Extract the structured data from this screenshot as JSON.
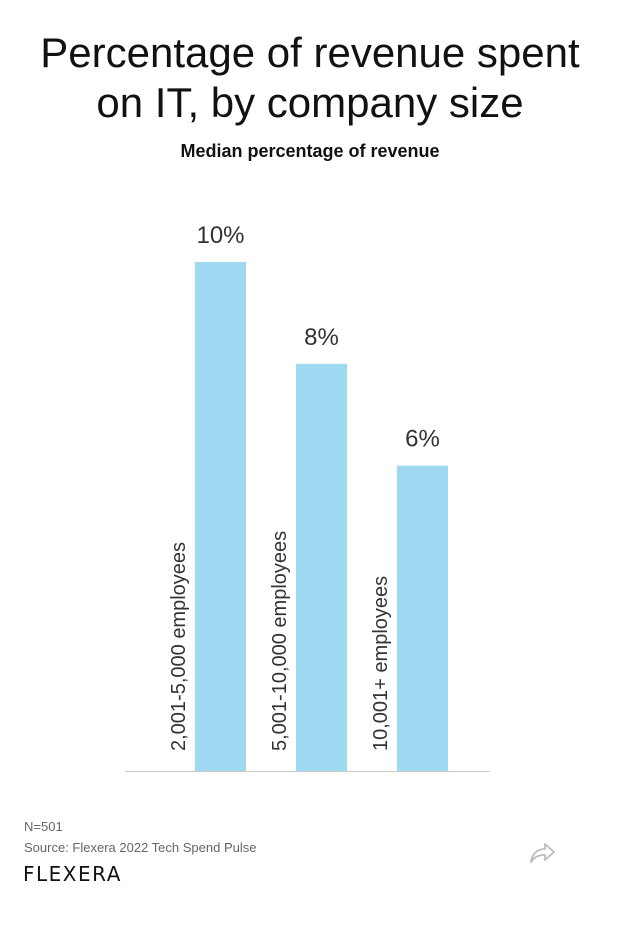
{
  "title": "Percentage of revenue spent on IT, by company size",
  "subtitle": "Median percentage of revenue",
  "chart_data": {
    "type": "bar",
    "categories": [
      "2,001-5,000 employees",
      "5,001-10,000 employees",
      "10,001+ employees"
    ],
    "values": [
      10,
      8,
      6
    ],
    "data_labels": [
      "10%",
      "8%",
      "6%"
    ],
    "title": "Percentage of revenue spent on IT, by company size",
    "subtitle": "Median percentage of revenue",
    "xlabel": "",
    "ylabel": "",
    "ylim": [
      0,
      10
    ],
    "grid": false,
    "bar_color": "#9dd9f1"
  },
  "footer": {
    "n_note": "N=501",
    "source": "Source: Flexera 2022 Tech Spend Pulse",
    "logo_text": "FLEXERA"
  },
  "icons": {
    "share": "share-icon"
  }
}
